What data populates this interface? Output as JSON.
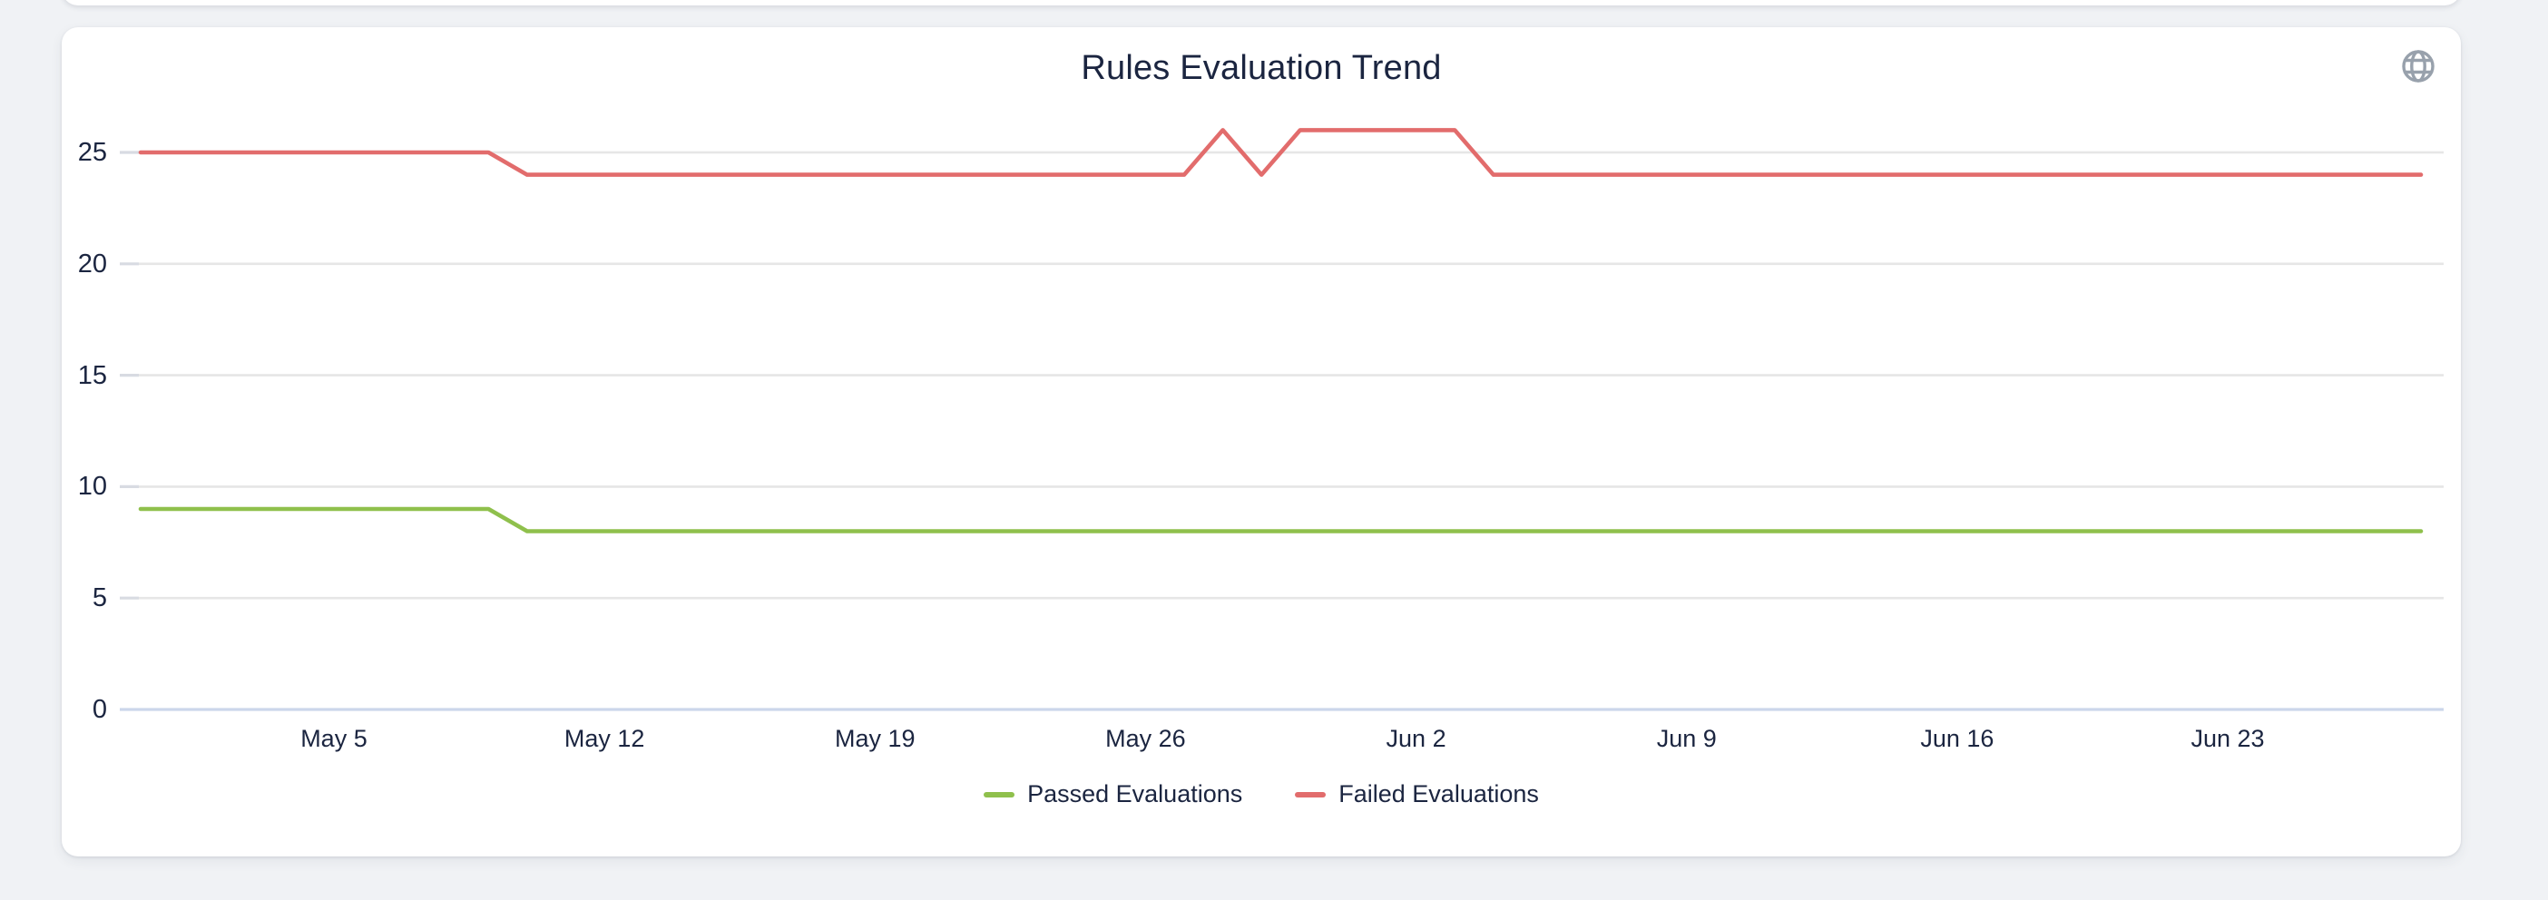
{
  "page": {
    "background": "#f0f2f5"
  },
  "card": {
    "background": "#ffffff"
  },
  "icons": {
    "context_menu": "globe-icon"
  },
  "chart_data": {
    "type": "line",
    "title": "Rules Evaluation Trend",
    "xlabel": "",
    "ylabel": "",
    "grid": true,
    "legend_position": "bottom",
    "ylim": [
      0,
      26.6
    ],
    "y_ticks": [
      0,
      5,
      10,
      15,
      20,
      25
    ],
    "x": [
      "Apr 30",
      "May 1",
      "May 2",
      "May 3",
      "May 4",
      "May 5",
      "May 6",
      "May 7",
      "May 8",
      "May 9",
      "May 10",
      "May 11",
      "May 12",
      "May 13",
      "May 14",
      "May 15",
      "May 16",
      "May 17",
      "May 18",
      "May 19",
      "May 20",
      "May 21",
      "May 22",
      "May 23",
      "May 24",
      "May 25",
      "May 26",
      "May 27",
      "May 28",
      "May 29",
      "May 30",
      "May 31",
      "Jun 1",
      "Jun 2",
      "Jun 3",
      "Jun 4",
      "Jun 5",
      "Jun 6",
      "Jun 7",
      "Jun 8",
      "Jun 9",
      "Jun 10",
      "Jun 11",
      "Jun 12",
      "Jun 13",
      "Jun 14",
      "Jun 15",
      "Jun 16",
      "Jun 17",
      "Jun 18",
      "Jun 19",
      "Jun 20",
      "Jun 21",
      "Jun 22",
      "Jun 23",
      "Jun 24",
      "Jun 25",
      "Jun 26",
      "Jun 27",
      "Jun 28"
    ],
    "x_tick_labels": [
      "May 5",
      "May 12",
      "May 19",
      "May 26",
      "Jun 2",
      "Jun 9",
      "Jun 16",
      "Jun 23"
    ],
    "series": [
      {
        "name": "Passed Evaluations",
        "color": "#8fc04c",
        "values": [
          9,
          9,
          9,
          9,
          9,
          9,
          9,
          9,
          9,
          9,
          8,
          8,
          8,
          8,
          8,
          8,
          8,
          8,
          8,
          8,
          8,
          8,
          8,
          8,
          8,
          8,
          8,
          8,
          8,
          8,
          8,
          8,
          8,
          8,
          8,
          8,
          8,
          8,
          8,
          8,
          8,
          8,
          8,
          8,
          8,
          8,
          8,
          8,
          8,
          8,
          8,
          8,
          8,
          8,
          8,
          8,
          8,
          8,
          8,
          8
        ]
      },
      {
        "name": "Failed Evaluations",
        "color": "#e26c6c",
        "values": [
          25,
          25,
          25,
          25,
          25,
          25,
          25,
          25,
          25,
          25,
          24,
          24,
          24,
          24,
          24,
          24,
          24,
          24,
          24,
          24,
          24,
          24,
          24,
          24,
          24,
          24,
          24,
          24,
          26,
          24,
          26,
          26,
          26,
          26,
          26,
          24,
          24,
          24,
          24,
          24,
          24,
          24,
          24,
          24,
          24,
          24,
          24,
          24,
          24,
          24,
          24,
          24,
          24,
          24,
          24,
          24,
          24,
          24,
          24,
          24
        ]
      }
    ],
    "colors": {
      "grid_line": "#e6e6e6",
      "axis_line": "#ccd6eb",
      "tick": "#d8dbe2",
      "text": "#1b2540",
      "icon": "#98a1ac"
    }
  }
}
